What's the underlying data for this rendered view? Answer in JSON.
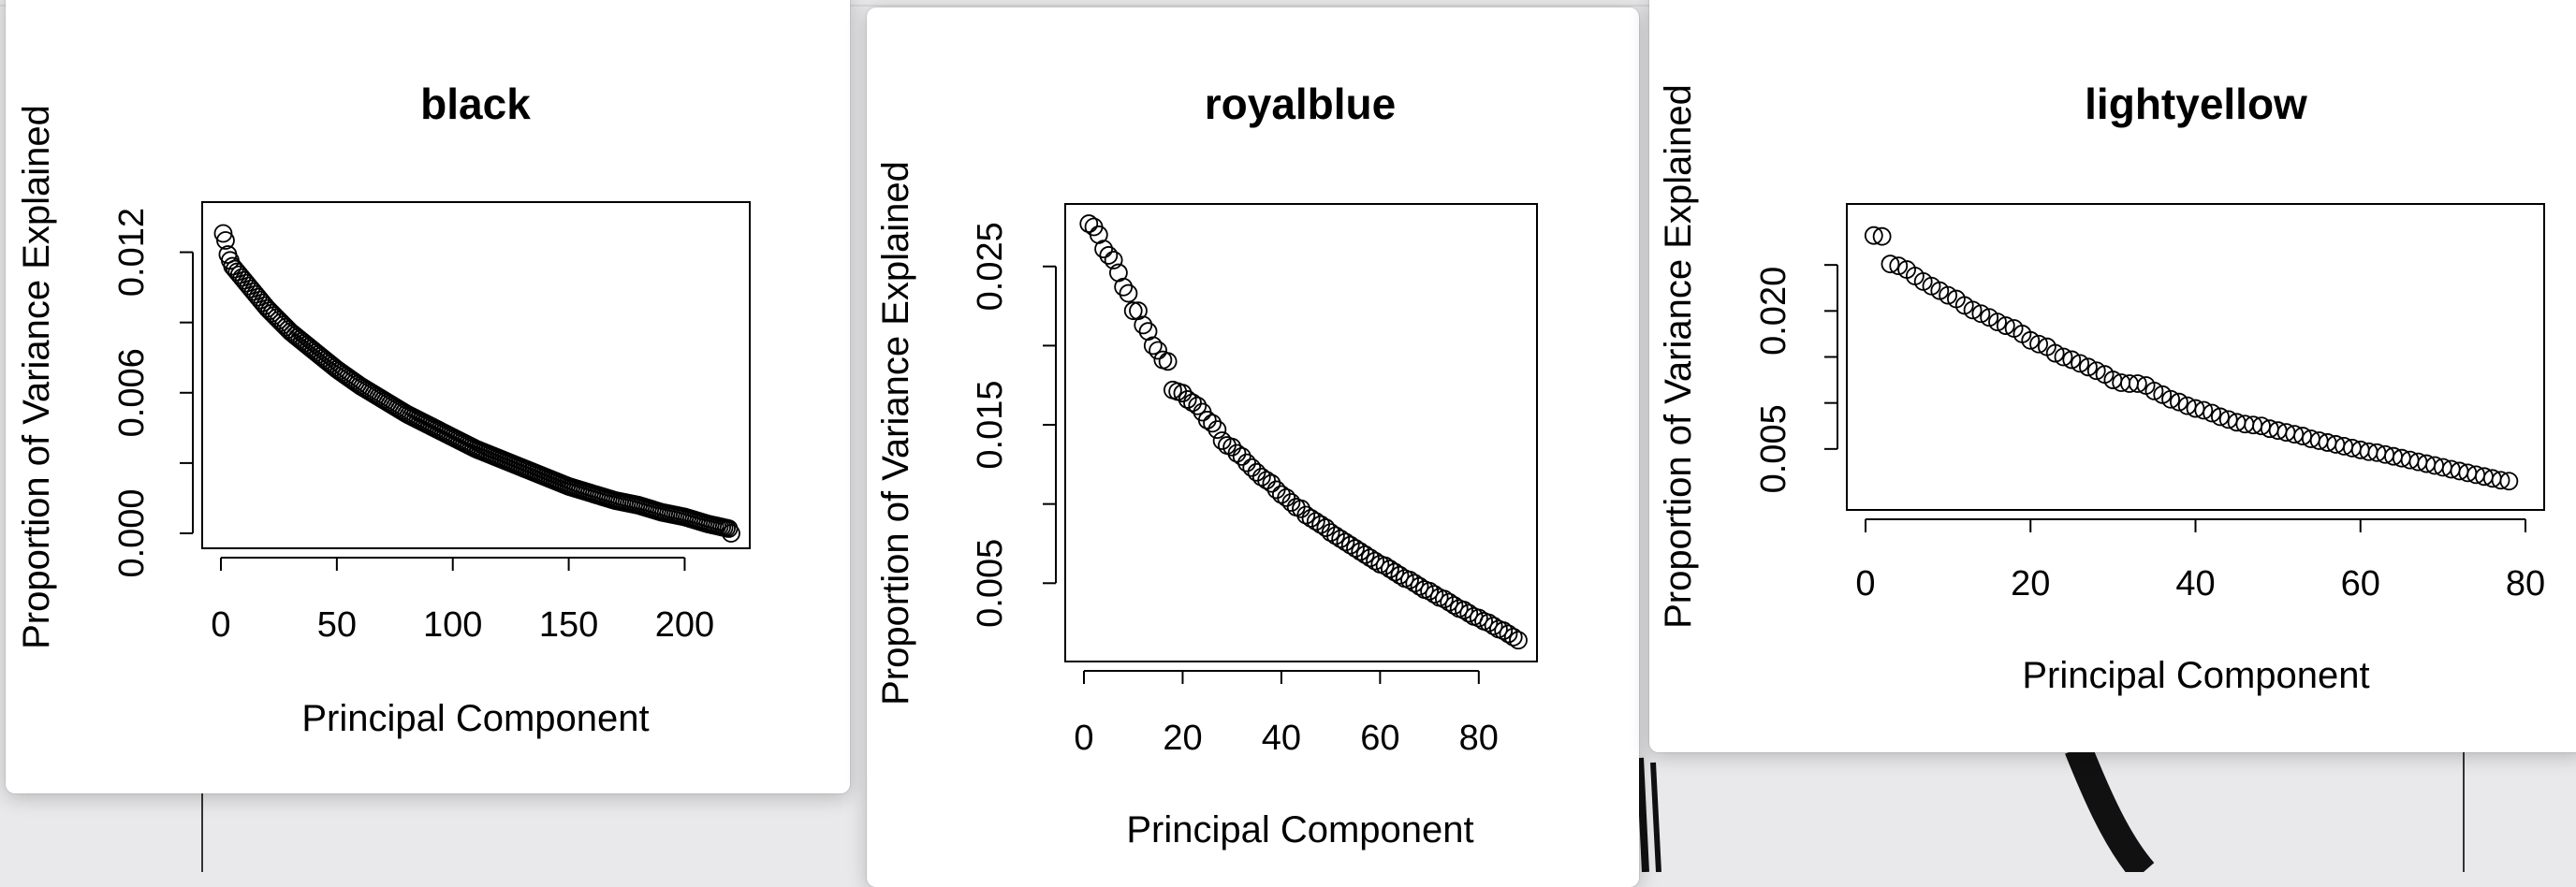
{
  "chart_data": [
    {
      "type": "scatter",
      "title": "black",
      "xlabel": "Principal Component",
      "ylabel": "Proportion of Variance Explained",
      "xlim": [
        0,
        220
      ],
      "ylim": [
        0,
        0.0135
      ],
      "x_ticks": [
        "0",
        "50",
        "100",
        "150",
        "200"
      ],
      "y_ticks": [
        "0.000",
        "0.006",
        "0.012"
      ],
      "y_minor_ticks": [
        0.003,
        0.009
      ],
      "point_style": "open-circle",
      "grid": false,
      "n_points": 220,
      "x": [
        1,
        2,
        3,
        5,
        10,
        20,
        30,
        40,
        50,
        60,
        70,
        80,
        90,
        100,
        110,
        120,
        130,
        140,
        150,
        160,
        170,
        180,
        190,
        200,
        210,
        219,
        220
      ],
      "y": [
        0.0128,
        0.0125,
        0.0119,
        0.0114,
        0.0108,
        0.0096,
        0.0086,
        0.0078,
        0.007,
        0.0063,
        0.0057,
        0.0051,
        0.0046,
        0.0041,
        0.0036,
        0.0032,
        0.0028,
        0.0024,
        0.002,
        0.0017,
        0.0014,
        0.0012,
        0.0009,
        0.0007,
        0.0004,
        0.0002,
        0.0
      ]
    },
    {
      "type": "scatter",
      "title": "royalblue",
      "xlabel": "Principal Component",
      "ylabel": "Proportion of Variance Explained",
      "xlim": [
        0,
        88
      ],
      "ylim": [
        0.001,
        0.028
      ],
      "x_ticks": [
        "0",
        "20",
        "40",
        "60",
        "80"
      ],
      "y_ticks": [
        "0.005",
        "0.015",
        "0.025"
      ],
      "y_minor_ticks": [
        0.01,
        0.02
      ],
      "point_style": "open-circle",
      "grid": false,
      "x": [
        1,
        2,
        3,
        4,
        5,
        6,
        7,
        8,
        9,
        10,
        11,
        12,
        13,
        14,
        15,
        16,
        17,
        18,
        19,
        20,
        21,
        22,
        23,
        24,
        25,
        26,
        27,
        28,
        29,
        30,
        31,
        32,
        33,
        34,
        35,
        36,
        37,
        38,
        39,
        40,
        41,
        42,
        43,
        44,
        45,
        46,
        47,
        48,
        49,
        50,
        51,
        52,
        53,
        54,
        55,
        56,
        57,
        58,
        59,
        60,
        61,
        62,
        63,
        64,
        65,
        66,
        67,
        68,
        69,
        70,
        71,
        72,
        73,
        74,
        75,
        76,
        77,
        78,
        79,
        80,
        81,
        82,
        83,
        84,
        85,
        86,
        87,
        88
      ],
      "y": [
        0.0277,
        0.0275,
        0.027,
        0.0261,
        0.0257,
        0.0254,
        0.0246,
        0.0237,
        0.0233,
        0.0222,
        0.0222,
        0.0213,
        0.0209,
        0.02,
        0.0197,
        0.0191,
        0.019,
        0.0172,
        0.0171,
        0.017,
        0.0166,
        0.0164,
        0.0162,
        0.0158,
        0.0153,
        0.0151,
        0.0147,
        0.014,
        0.0137,
        0.0136,
        0.0132,
        0.013,
        0.0126,
        0.0123,
        0.012,
        0.0117,
        0.0115,
        0.0113,
        0.0109,
        0.0106,
        0.0104,
        0.0101,
        0.0098,
        0.0097,
        0.0093,
        0.0091,
        0.0089,
        0.0087,
        0.0085,
        0.0082,
        0.008,
        0.0078,
        0.0076,
        0.0074,
        0.0072,
        0.007,
        0.0068,
        0.0066,
        0.0064,
        0.0062,
        0.0061,
        0.0059,
        0.0057,
        0.0055,
        0.0053,
        0.0052,
        0.005,
        0.0048,
        0.0046,
        0.0045,
        0.0043,
        0.0041,
        0.004,
        0.0038,
        0.0036,
        0.0034,
        0.0033,
        0.0031,
        0.0029,
        0.0028,
        0.0026,
        0.0025,
        0.0023,
        0.0021,
        0.002,
        0.0018,
        0.0016,
        0.0014
      ]
    },
    {
      "type": "scatter",
      "title": "lightyellow",
      "xlabel": "Principal Component",
      "ylabel": "Proportion of Variance Explained",
      "xlim": [
        0,
        80
      ],
      "ylim": [
        0.0,
        0.03
      ],
      "x_ticks": [
        "0",
        "20",
        "40",
        "60",
        "80"
      ],
      "y_ticks": [
        "0.005",
        "0.020"
      ],
      "y_minor_ticks": [
        0.01,
        0.015,
        0.025
      ],
      "point_style": "open-circle",
      "grid": false,
      "x": [
        1,
        2,
        3,
        4,
        5,
        6,
        7,
        8,
        9,
        10,
        11,
        12,
        13,
        14,
        15,
        16,
        17,
        18,
        19,
        20,
        21,
        22,
        23,
        24,
        25,
        26,
        27,
        28,
        29,
        30,
        31,
        32,
        33,
        34,
        35,
        36,
        37,
        38,
        39,
        40,
        41,
        42,
        43,
        44,
        45,
        46,
        47,
        48,
        49,
        50,
        51,
        52,
        53,
        54,
        55,
        56,
        57,
        58,
        59,
        60,
        61,
        62,
        63,
        64,
        65,
        66,
        67,
        68,
        69,
        70,
        71,
        72,
        73,
        74,
        75,
        76,
        77,
        78
      ],
      "y": [
        0.0282,
        0.0281,
        0.0251,
        0.0249,
        0.0245,
        0.0238,
        0.0232,
        0.0227,
        0.0222,
        0.0217,
        0.0213,
        0.0206,
        0.0201,
        0.0197,
        0.0193,
        0.0188,
        0.0184,
        0.0181,
        0.0175,
        0.0168,
        0.0164,
        0.0161,
        0.0154,
        0.015,
        0.0147,
        0.0143,
        0.0139,
        0.0135,
        0.0131,
        0.0125,
        0.0122,
        0.0121,
        0.0121,
        0.0119,
        0.0113,
        0.0109,
        0.0104,
        0.0101,
        0.0097,
        0.0094,
        0.0092,
        0.0089,
        0.0085,
        0.0082,
        0.0079,
        0.0077,
        0.0076,
        0.0075,
        0.0072,
        0.007,
        0.0068,
        0.0066,
        0.0064,
        0.0061,
        0.0059,
        0.0057,
        0.0055,
        0.0053,
        0.0051,
        0.0049,
        0.0047,
        0.0046,
        0.0044,
        0.0042,
        0.004,
        0.0038,
        0.0036,
        0.0034,
        0.0032,
        0.003,
        0.0028,
        0.0026,
        0.0024,
        0.0022,
        0.002,
        0.0018,
        0.0016,
        0.0015
      ]
    }
  ]
}
